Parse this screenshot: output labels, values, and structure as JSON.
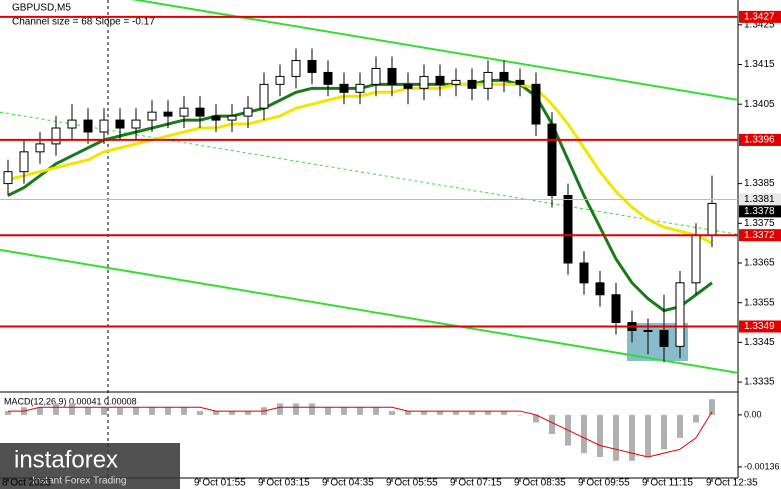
{
  "chart_data": {
    "type": "candlestick",
    "title": "GBPUSD,M5",
    "subtitle": "Channel size = 68 Slope = -0.17",
    "x": [
      "8 Oct 2023",
      null,
      null,
      null,
      null,
      null,
      null,
      null,
      null,
      null,
      null,
      null,
      "9 Oct 01:55",
      null,
      null,
      null,
      "9 Oct 03:15",
      null,
      null,
      null,
      "9 Oct 04:35",
      null,
      null,
      null,
      "9 Oct 05:55",
      null,
      null,
      null,
      "9 Oct 07:15",
      null,
      null,
      null,
      "9 Oct 08:35",
      null,
      null,
      null,
      "9 Oct 09:55",
      null,
      null,
      null,
      "9 Oct 11:15",
      null,
      null,
      null,
      "9 Oct 12:35"
    ],
    "open": [
      1.3385,
      1.3388,
      1.3393,
      1.3395,
      1.3399,
      1.3401,
      1.3398,
      1.3401,
      1.3399,
      1.3401,
      1.3403,
      1.3402,
      1.3404,
      1.3402,
      1.3401,
      1.3402,
      1.3404,
      1.341,
      1.3412,
      1.3416,
      1.3413,
      1.341,
      1.3408,
      1.341,
      1.3414,
      1.341,
      1.3409,
      1.3412,
      1.341,
      1.3411,
      1.3409,
      1.3413,
      1.3411,
      1.341,
      1.34,
      1.3382,
      1.3365,
      1.336,
      1.3357,
      1.335,
      1.3348,
      1.3348,
      1.3344,
      1.336,
      1.3372
    ],
    "high": [
      1.3391,
      1.3396,
      1.3398,
      1.3402,
      1.3405,
      1.3404,
      1.3404,
      1.3404,
      1.3404,
      1.3406,
      1.3406,
      1.3407,
      1.3407,
      1.3405,
      1.3405,
      1.3407,
      1.3413,
      1.3415,
      1.3419,
      1.3419,
      1.3416,
      1.3413,
      1.3413,
      1.3417,
      1.3417,
      1.3413,
      1.3415,
      1.3415,
      1.3414,
      1.3414,
      1.3416,
      1.3416,
      1.3414,
      1.3413,
      1.3403,
      1.3385,
      1.3368,
      1.3363,
      1.336,
      1.3353,
      1.3351,
      1.3357,
      1.3363,
      1.3375,
      1.3387
    ],
    "low": [
      1.3382,
      1.3385,
      1.339,
      1.3392,
      1.3396,
      1.3395,
      1.3395,
      1.3396,
      1.3396,
      1.3398,
      1.3399,
      1.3399,
      1.3399,
      1.3398,
      1.3398,
      1.3399,
      1.3401,
      1.3407,
      1.3409,
      1.341,
      1.3407,
      1.3405,
      1.3405,
      1.3407,
      1.3407,
      1.3405,
      1.3406,
      1.3407,
      1.3407,
      1.3406,
      1.3406,
      1.3408,
      1.3407,
      1.3397,
      1.3379,
      1.3362,
      1.3357,
      1.3354,
      1.3347,
      1.3345,
      1.3342,
      1.334,
      1.3341,
      1.3357,
      1.3369
    ],
    "close": [
      1.3388,
      1.3393,
      1.3395,
      1.3399,
      1.3401,
      1.3398,
      1.3401,
      1.3399,
      1.3401,
      1.3403,
      1.3402,
      1.3404,
      1.3402,
      1.3401,
      1.3402,
      1.3404,
      1.341,
      1.3412,
      1.3416,
      1.3413,
      1.341,
      1.3408,
      1.341,
      1.3414,
      1.341,
      1.3409,
      1.3412,
      1.341,
      1.3411,
      1.3409,
      1.3413,
      1.3411,
      1.341,
      1.34,
      1.3382,
      1.3365,
      1.336,
      1.3357,
      1.335,
      1.3348,
      1.3348,
      1.3344,
      1.336,
      1.3372,
      1.338
    ],
    "series": [
      {
        "color": "#1a7a1a",
        "values": [
          1.3382,
          1.3384,
          1.3387,
          1.339,
          1.3392,
          1.3394,
          1.3396,
          1.3397,
          1.3398,
          1.3399,
          1.34,
          1.3401,
          1.3401,
          1.3402,
          1.3402,
          1.3403,
          1.3404,
          1.3406,
          1.3408,
          1.3409,
          1.3409,
          1.3409,
          1.3409,
          1.341,
          1.341,
          1.341,
          1.341,
          1.341,
          1.341,
          1.341,
          1.3411,
          1.3411,
          1.341,
          1.3407,
          1.34,
          1.3391,
          1.3382,
          1.3374,
          1.3366,
          1.336,
          1.3356,
          1.3353,
          1.3354,
          1.3357,
          1.336
        ]
      },
      {
        "color": "#f2e600",
        "values": [
          1.3386,
          1.3387,
          1.3388,
          1.3389,
          1.339,
          1.3391,
          1.3393,
          1.3394,
          1.3395,
          1.3396,
          1.3397,
          1.3398,
          1.3399,
          1.3399,
          1.34,
          1.34,
          1.3401,
          1.3402,
          1.3404,
          1.3405,
          1.3406,
          1.3407,
          1.3407,
          1.3408,
          1.3408,
          1.3409,
          1.3409,
          1.3409,
          1.341,
          1.341,
          1.341,
          1.341,
          1.341,
          1.3409,
          1.3405,
          1.34,
          1.3394,
          1.3388,
          1.3383,
          1.3379,
          1.3376,
          1.3374,
          1.3373,
          1.3372,
          1.337
        ]
      }
    ],
    "ylim": [
      1.33325,
      1.343125
    ],
    "yticks": [
      1.3425,
      1.3415,
      1.3405,
      1.3385,
      1.3375,
      1.3365,
      1.3355,
      1.3345,
      1.3335
    ],
    "levels": [
      {
        "value": 1.3427,
        "color": "#e00000",
        "label_color": "#e00000"
      },
      {
        "value": 1.3396,
        "color": "#e00000",
        "label_color": "#e00000"
      },
      {
        "value": 1.3381,
        "color": "#bbbbbb",
        "label_color": "#e8e8e8"
      },
      {
        "value": 1.3378,
        "color": null,
        "label_color": "#000000"
      },
      {
        "value": 1.3372,
        "color": "#e00000",
        "label_color": "#e00000"
      },
      {
        "value": 1.3349,
        "color": "#e00000",
        "label_color": "#e00000"
      }
    ],
    "channel": [
      {
        "start": 1.3437,
        "end": 1.34061,
        "color": "#33dd33",
        "dashed": false
      },
      {
        "start": 1.3403,
        "end": 1.33722,
        "color": "#33dd33",
        "dashed": true
      },
      {
        "start": 1.33683,
        "end": 1.33373,
        "color": "#33dd33",
        "dashed": false
      }
    ],
    "macd": {
      "label": "MACD(12,26,9) 0.00041 0.00008",
      "histogram": [
        0.0001,
        0.0002,
        0.0002,
        0.0003,
        0.0003,
        0.0002,
        0.0002,
        0.0002,
        0.0002,
        0.0002,
        0.0002,
        0.0002,
        0.0001,
        0.0001,
        0.0001,
        0.0001,
        0.0002,
        0.0003,
        0.0003,
        0.0003,
        0.0002,
        0.0002,
        0.0002,
        0.0002,
        0.0001,
        0.0001,
        0.0001,
        0.0001,
        0.0001,
        0.0001,
        0.0001,
        0.0001,
        0.0,
        -0.0002,
        -0.0005,
        -0.0008,
        -0.001,
        -0.0011,
        -0.0012,
        -0.0012,
        -0.0011,
        -0.0009,
        -0.0006,
        -0.0002,
        0.00041
      ],
      "signal": [
        0.0001,
        0.0001,
        0.0002,
        0.0002,
        0.0002,
        0.0002,
        0.0002,
        0.0002,
        0.0002,
        0.0002,
        0.0002,
        0.0002,
        0.0002,
        0.0001,
        0.0001,
        0.0001,
        0.0001,
        0.0002,
        0.0002,
        0.0002,
        0.0002,
        0.0002,
        0.0002,
        0.0002,
        0.0002,
        0.0001,
        0.0001,
        0.0001,
        0.0001,
        0.0001,
        0.0001,
        0.0001,
        0.0001,
        0.0,
        -0.0002,
        -0.0004,
        -0.0006,
        -0.0008,
        -0.0009,
        -0.001,
        -0.0011,
        -0.001,
        -0.0009,
        -0.0006,
        8e-05
      ],
      "hist_color": "#b0b0b0",
      "signal_color": "#dd0000",
      "ylim": [
        -0.00165,
        0.00052
      ],
      "yticks": [
        {
          "value": 0,
          "label": "0.00"
        },
        -0.00136
      ]
    },
    "watermark": {
      "brand": "instaforex",
      "tagline": "Instant Forex Trading"
    }
  }
}
